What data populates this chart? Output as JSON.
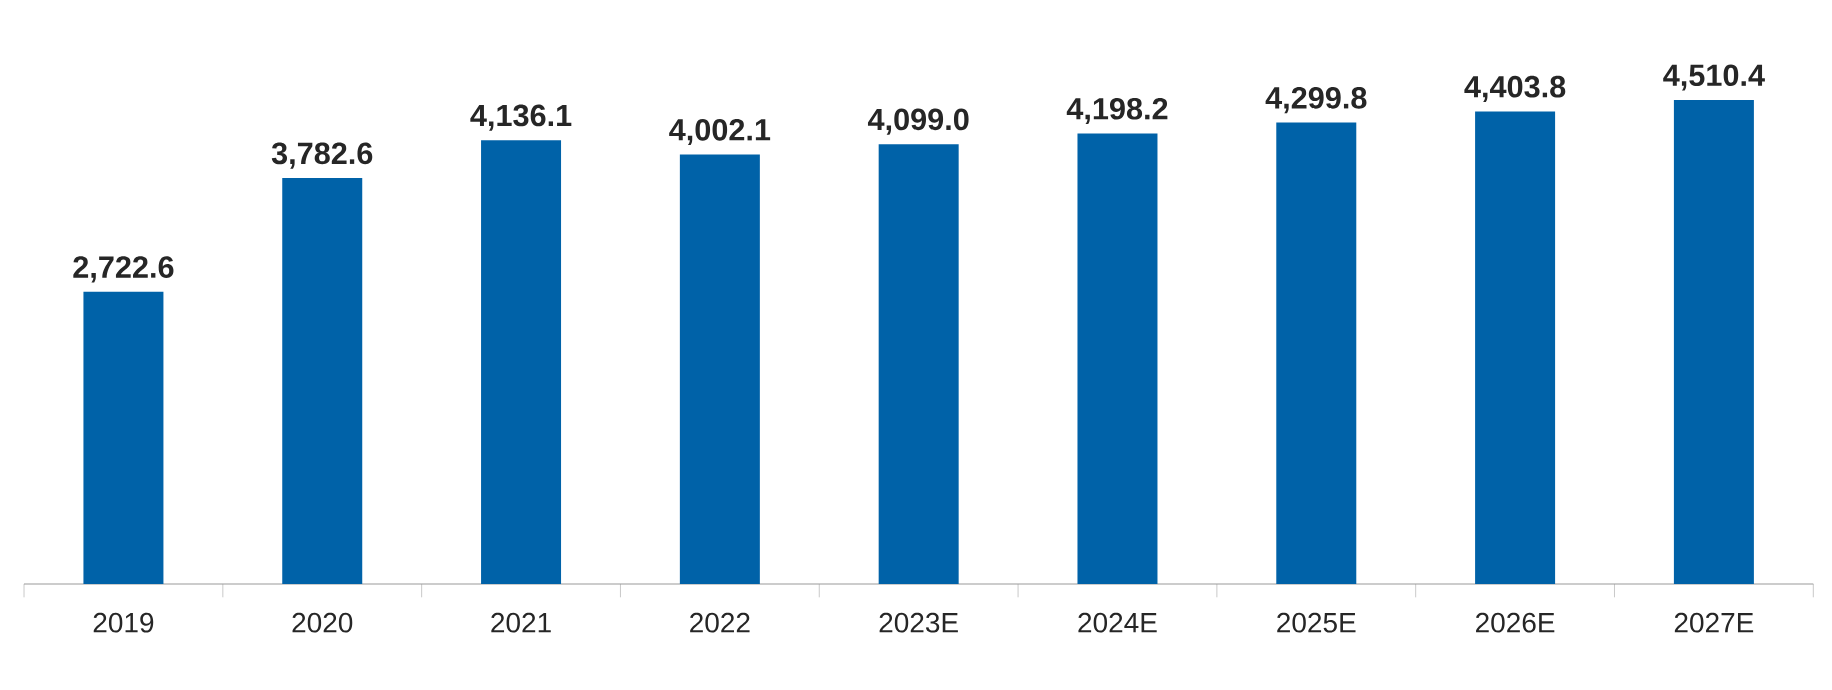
{
  "chart_data": {
    "type": "bar",
    "categories": [
      "2019",
      "2020",
      "2021",
      "2022",
      "2023E",
      "2024E",
      "2025E",
      "2026E",
      "2027E"
    ],
    "values": [
      2722.6,
      3782.6,
      4136.1,
      4002.1,
      4099.0,
      4198.2,
      4299.8,
      4403.8,
      4510.4
    ],
    "value_labels": [
      "2,722.6",
      "3,782.6",
      "4,136.1",
      "4,002.1",
      "4,099.0",
      "4,198.2",
      "4,299.8",
      "4,403.8",
      "4,510.4"
    ],
    "color": "#0062a8"
  }
}
